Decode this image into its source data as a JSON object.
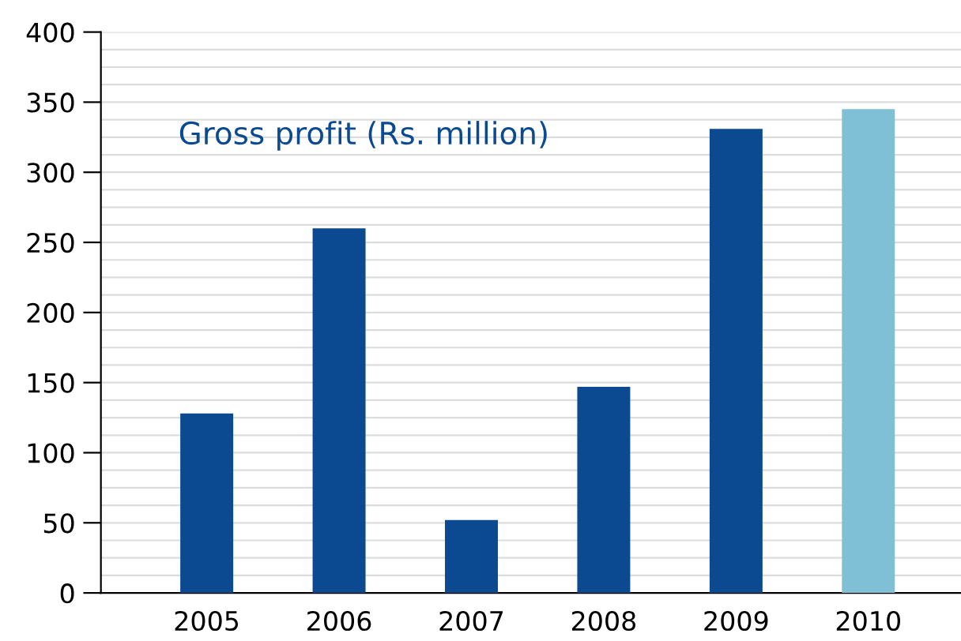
{
  "chart_data": {
    "type": "bar",
    "title": "Gross profit (Rs. million)",
    "categories": [
      "2005",
      "2006",
      "2007",
      "2008",
      "2009",
      "2010"
    ],
    "values": [
      128,
      260,
      52,
      147,
      331,
      345
    ],
    "colors": [
      "#0b4a91",
      "#0b4a91",
      "#0b4a91",
      "#0b4a91",
      "#0b4a91",
      "#7fc0d6"
    ],
    "ylim": [
      0,
      400
    ],
    "yticks": [
      0,
      50,
      100,
      150,
      200,
      250,
      300,
      350,
      400
    ],
    "grid": "y"
  }
}
